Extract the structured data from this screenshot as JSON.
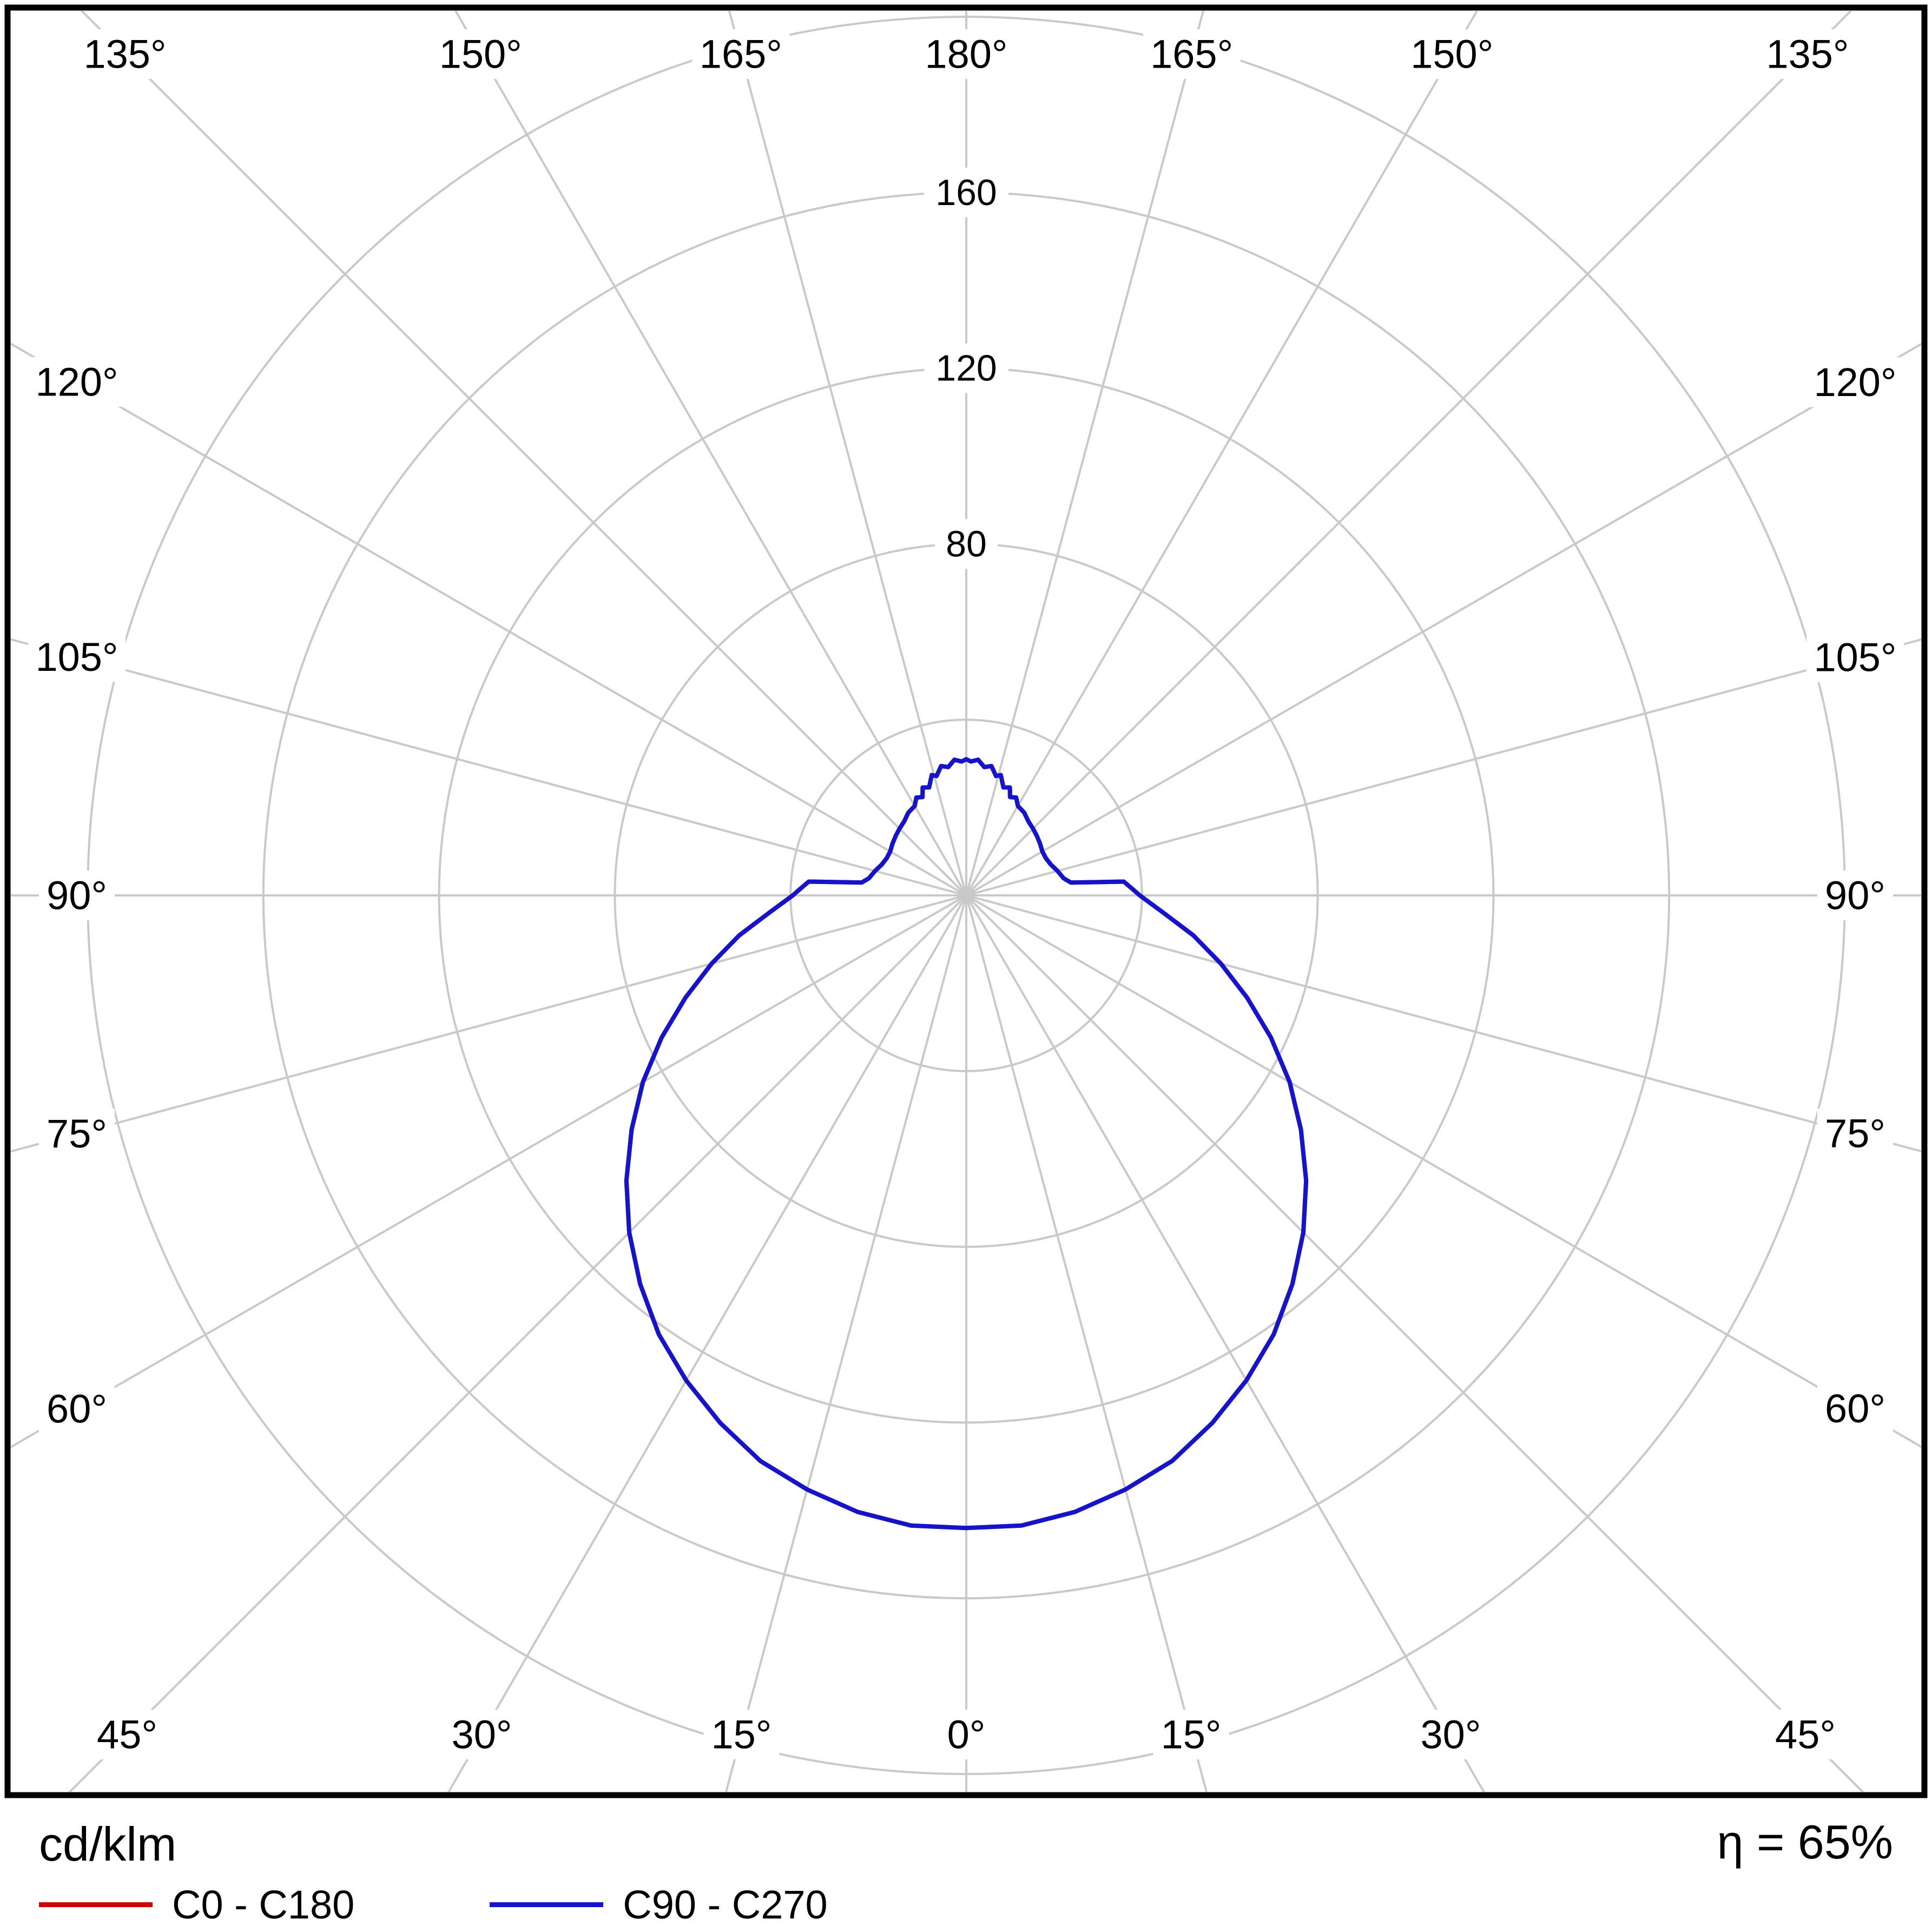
{
  "chart_data": {
    "type": "polar_photometric",
    "units_label": "cd/klm",
    "efficiency_label": "η = 65%",
    "angle_label_suffix": "°",
    "angle_ticks_deg": [
      0,
      15,
      30,
      45,
      60,
      75,
      90,
      105,
      120,
      135,
      150,
      165,
      180
    ],
    "radial_circles": [
      40,
      80,
      120,
      160,
      200
    ],
    "radial_tick_labels": [
      80,
      120,
      160
    ],
    "rmax": 200,
    "grid_color": "#c9c9c9",
    "legend": [
      {
        "label": "C0 - C180",
        "color": "#cc0000"
      },
      {
        "label": "C90 - C270",
        "color": "#1414cc"
      }
    ],
    "series": [
      {
        "name": "C0 - C180",
        "color": "#cc0000",
        "gamma_deg": [
          0,
          5,
          10,
          15,
          20,
          25,
          30,
          35,
          40,
          45,
          50,
          55,
          60,
          65,
          70,
          75,
          80,
          85,
          90,
          92,
          95,
          97,
          100,
          105,
          110,
          115,
          120,
          125,
          130,
          135,
          140,
          145,
          150,
          153,
          156,
          158,
          161,
          164,
          166,
          169,
          172,
          175,
          178,
          180
        ],
        "values": [
          144,
          144,
          142.5,
          140,
          137,
          132.5,
          127.5,
          122,
          115.5,
          108.5,
          101,
          93,
          85,
          76.5,
          68,
          60,
          52.5,
          45,
          39.5,
          38,
          36,
          24,
          22.5,
          21.5,
          20.5,
          20,
          20,
          20.5,
          21,
          21.5,
          22,
          23,
          23.5,
          25,
          24.5,
          26.5,
          26,
          28.5,
          28,
          30,
          29.5,
          31,
          30.5,
          31
        ]
      },
      {
        "name": "C90 - C270",
        "color": "#1414cc",
        "gamma_deg": [
          0,
          5,
          10,
          15,
          20,
          25,
          30,
          35,
          40,
          45,
          50,
          55,
          60,
          65,
          70,
          75,
          80,
          85,
          90,
          92,
          95,
          97,
          100,
          105,
          110,
          115,
          120,
          125,
          130,
          135,
          140,
          145,
          150,
          153,
          156,
          158,
          161,
          164,
          166,
          169,
          172,
          175,
          178,
          180
        ],
        "values": [
          144,
          144,
          142.5,
          140,
          137,
          132.5,
          127.5,
          122,
          115.5,
          108.5,
          101,
          93,
          85,
          76.5,
          68,
          60,
          52.5,
          45,
          39.5,
          38,
          36,
          24,
          22.5,
          21.5,
          20.5,
          20,
          20,
          20.5,
          21,
          21.5,
          22,
          23,
          23.5,
          25,
          24.5,
          26.5,
          26,
          28.5,
          28,
          30,
          29.5,
          31,
          30.5,
          31
        ]
      }
    ]
  }
}
